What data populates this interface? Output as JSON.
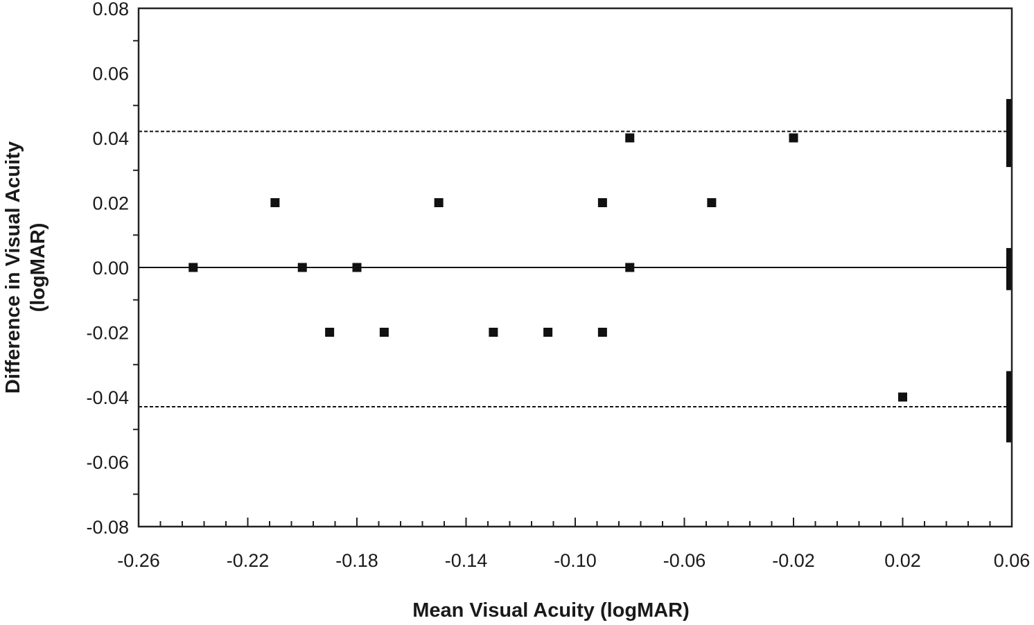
{
  "chart_data": {
    "type": "scatter",
    "title": "",
    "xlabel": "Mean Visual Acuity (logMAR)",
    "ylabel_lines": [
      "Difference in Visual Acuity",
      "(logMAR)"
    ],
    "xlim": [
      -0.26,
      0.06
    ],
    "ylim": [
      -0.08,
      0.08
    ],
    "x_ticks": [
      "-0.26",
      "-0.22",
      "-0.18",
      "-0.14",
      "-0.10",
      "-0.06",
      "-0.02",
      "0.02",
      "0.06"
    ],
    "y_ticks": [
      "0.08",
      "0.06",
      "0.04",
      "0.02",
      "0.00",
      "-0.02",
      "-0.04",
      "-0.06",
      "-0.08"
    ],
    "grid": false,
    "points": [
      {
        "x": -0.24,
        "y": 0.0
      },
      {
        "x": -0.21,
        "y": 0.02
      },
      {
        "x": -0.2,
        "y": 0.0
      },
      {
        "x": -0.19,
        "y": -0.02
      },
      {
        "x": -0.18,
        "y": 0.0
      },
      {
        "x": -0.17,
        "y": -0.02
      },
      {
        "x": -0.15,
        "y": 0.02
      },
      {
        "x": -0.13,
        "y": -0.02
      },
      {
        "x": -0.11,
        "y": -0.02
      },
      {
        "x": -0.09,
        "y": 0.02
      },
      {
        "x": -0.09,
        "y": -0.02
      },
      {
        "x": -0.08,
        "y": 0.04
      },
      {
        "x": -0.08,
        "y": 0.0
      },
      {
        "x": -0.05,
        "y": 0.02
      },
      {
        "x": -0.02,
        "y": 0.04
      },
      {
        "x": 0.02,
        "y": -0.04
      }
    ],
    "mean_difference": 0.0,
    "upper_limit_of_agreement": 0.042,
    "lower_limit_of_agreement": -0.043,
    "confidence_intervals": [
      {
        "name": "upper limit CI",
        "low": 0.031,
        "high": 0.052
      },
      {
        "name": "mean CI",
        "low": -0.007,
        "high": 0.006
      },
      {
        "name": "lower limit CI",
        "low": -0.054,
        "high": -0.032
      }
    ],
    "colors": {
      "marker": "#111111",
      "axis": "#222222"
    }
  }
}
